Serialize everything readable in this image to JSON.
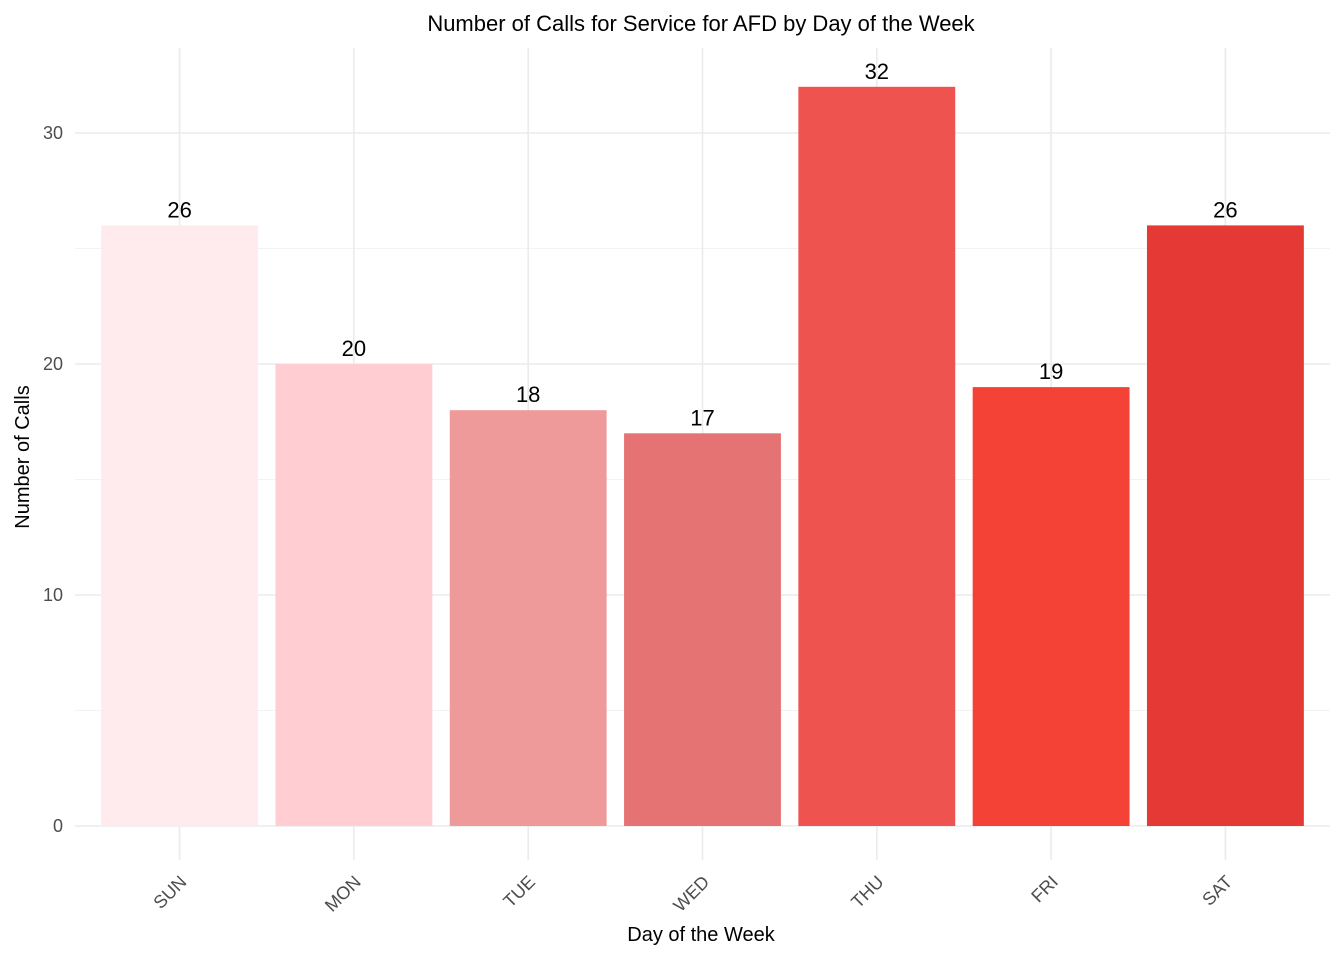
{
  "chart_data": {
    "type": "bar",
    "title": "Number of Calls for Service for AFD by Day of the Week",
    "xlabel": "Day of the Week",
    "ylabel": "Number of Calls",
    "categories": [
      "SUN",
      "MON",
      "TUE",
      "WED",
      "THU",
      "FRI",
      "SAT"
    ],
    "values": [
      26,
      20,
      18,
      17,
      32,
      19,
      26
    ],
    "colors": [
      "#ffebee",
      "#ffcdd2",
      "#ef9a9a",
      "#e57373",
      "#ef5350",
      "#f44336",
      "#e53935"
    ],
    "ylim": [
      0,
      33.6
    ],
    "yticks": [
      0,
      10,
      20,
      30
    ],
    "grid": true,
    "legend": "none"
  }
}
